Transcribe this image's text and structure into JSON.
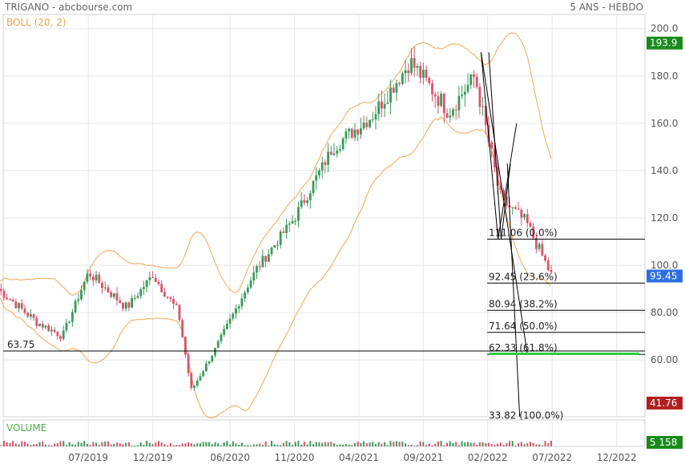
{
  "header": {
    "title": "TRIGANO - abcbourse.com",
    "period": "5 ANS - HEBDO",
    "bollinger_label": "BOLL (20, 2)",
    "volume_label": "VOLUME"
  },
  "colors": {
    "up": "#3a9a5a",
    "down": "#d9536a",
    "bollinger": "#f0a850",
    "fib_line": "#000000",
    "support": "#2ecc40",
    "last_price_badge": "#2e6fe0",
    "high_badge": "#1a8a1a",
    "low_badge": "#b21f1f",
    "grid": "#e6e6e6"
  },
  "chart_data": {
    "type": "candlestick",
    "instrument": "TRIGANO",
    "y_ticks": [
      "200.0",
      "180.0",
      "160.0",
      "140.0",
      "120.0",
      "100.0",
      "80.00",
      "60.00"
    ],
    "ylim": [
      36,
      206
    ],
    "x_ticks": [
      "07/2019",
      "12/2019",
      "06/2020",
      "11/2020",
      "04/2021",
      "09/2021",
      "02/2022",
      "07/2022",
      "12/2022"
    ],
    "last_price": "95.45",
    "period_high": "193.9",
    "period_low": "41.76",
    "last_volume": "5 158",
    "support_level": {
      "value": 63.75,
      "label": "63.75"
    },
    "fibonacci": [
      {
        "value": 111.06,
        "label": "111.06 (0.0%)"
      },
      {
        "value": 92.45,
        "label": "92.45 (23.6%)"
      },
      {
        "value": 80.94,
        "label": "80.94 (38.2%)"
      },
      {
        "value": 71.64,
        "label": "71.64 (50.0%)"
      },
      {
        "value": 62.33,
        "label": "62.33 (61.8%)"
      },
      {
        "value": 33.82,
        "label": "33.82 (100.0%)"
      }
    ],
    "price_path_key_points": [
      {
        "date": "2018-12",
        "close": 90
      },
      {
        "date": "2019-03",
        "close": 76
      },
      {
        "date": "2019-05",
        "close": 70
      },
      {
        "date": "2019-07",
        "close": 97
      },
      {
        "date": "2019-10",
        "close": 82
      },
      {
        "date": "2019-12",
        "close": 96
      },
      {
        "date": "2020-02",
        "close": 80
      },
      {
        "date": "2020-03",
        "close": 47
      },
      {
        "date": "2020-05",
        "close": 66
      },
      {
        "date": "2020-08",
        "close": 98
      },
      {
        "date": "2020-11",
        "close": 120
      },
      {
        "date": "2021-02",
        "close": 150
      },
      {
        "date": "2021-05",
        "close": 163
      },
      {
        "date": "2021-08",
        "close": 186
      },
      {
        "date": "2021-11",
        "close": 165
      },
      {
        "date": "2022-01",
        "close": 180
      },
      {
        "date": "2022-03",
        "close": 128
      },
      {
        "date": "2022-05",
        "close": 118
      },
      {
        "date": "2022-07",
        "close": 95
      }
    ]
  }
}
